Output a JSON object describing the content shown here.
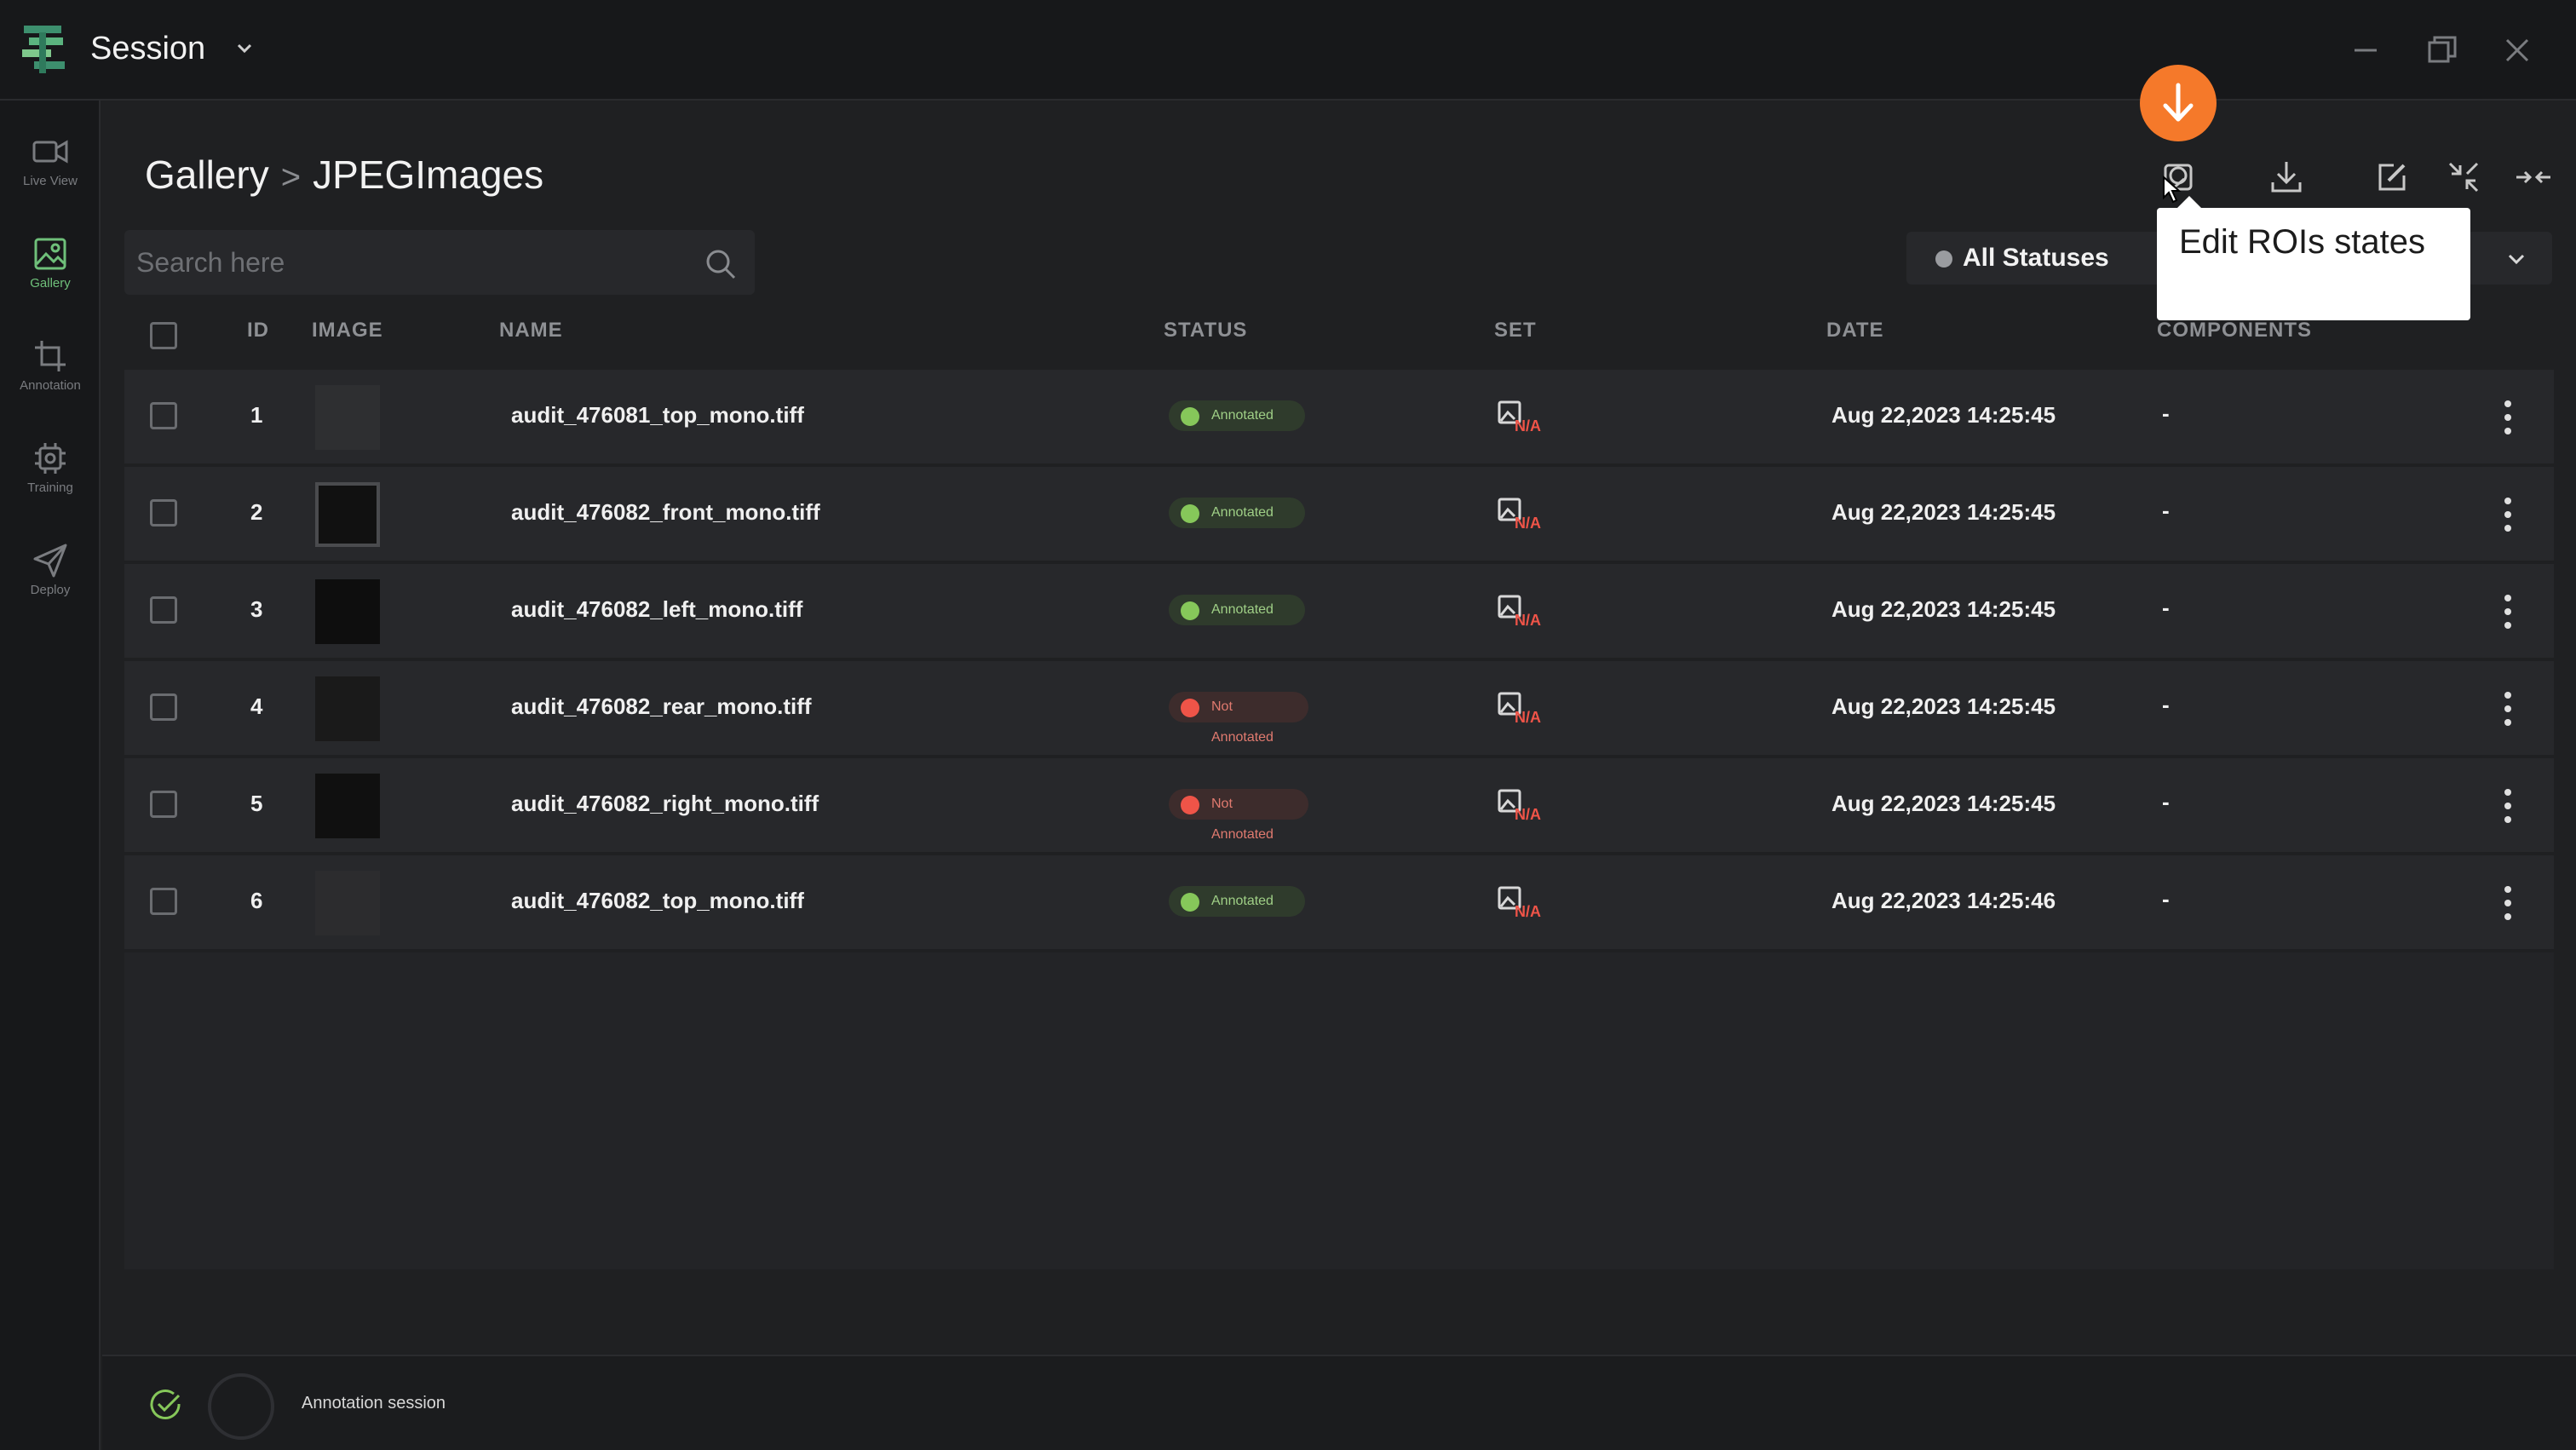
{
  "app": {
    "title": "Session"
  },
  "sidebar": {
    "items": [
      {
        "label": "Live View",
        "icon": "video-camera-icon",
        "active": false
      },
      {
        "label": "Gallery",
        "icon": "image-icon",
        "active": true
      },
      {
        "label": "Annotation",
        "icon": "crop-icon",
        "active": false
      },
      {
        "label": "Training",
        "icon": "chip-icon",
        "active": false
      },
      {
        "label": "Deploy",
        "icon": "send-icon",
        "active": false
      }
    ]
  },
  "breadcrumb": {
    "parent": "Gallery",
    "separator": ">",
    "current": "JPEGImages"
  },
  "tooltip": {
    "text": "Edit ROIs states"
  },
  "search": {
    "placeholder": "Search here",
    "value": ""
  },
  "filter": {
    "status_label": "All Statuses"
  },
  "table": {
    "headers": {
      "id": "ID",
      "image": "IMAGE",
      "name": "NAME",
      "status": "STATUS",
      "set": "SET",
      "date": "DATE",
      "components": "COMPONENTS"
    },
    "set_badge": "N/A",
    "rows": [
      {
        "id": "1",
        "name": "audit_476081_top_mono.tiff",
        "status": "Annotated",
        "state": "ok",
        "date": "Aug 22,2023 14:25:45",
        "components": "-"
      },
      {
        "id": "2",
        "name": "audit_476082_front_mono.tiff",
        "status": "Annotated",
        "state": "ok",
        "date": "Aug 22,2023 14:25:45",
        "components": "-"
      },
      {
        "id": "3",
        "name": "audit_476082_left_mono.tiff",
        "status": "Annotated",
        "state": "ok",
        "date": "Aug 22,2023 14:25:45",
        "components": "-"
      },
      {
        "id": "4",
        "name": "audit_476082_rear_mono.tiff",
        "status": "Not Annotated",
        "state": "bad",
        "date": "Aug 22,2023 14:25:45",
        "components": "-"
      },
      {
        "id": "5",
        "name": "audit_476082_right_mono.tiff",
        "status": "Not Annotated",
        "state": "bad",
        "date": "Aug 22,2023 14:25:45",
        "components": "-"
      },
      {
        "id": "6",
        "name": "audit_476082_top_mono.tiff",
        "status": "Annotated",
        "state": "ok",
        "date": "Aug 22,2023 14:25:46",
        "components": "-"
      }
    ]
  },
  "footer": {
    "label": "Annotation session"
  },
  "colors": {
    "accent": "#f5792a",
    "success": "#86c75a",
    "danger": "#ef5448",
    "sidebar_active": "#6fc07a"
  }
}
